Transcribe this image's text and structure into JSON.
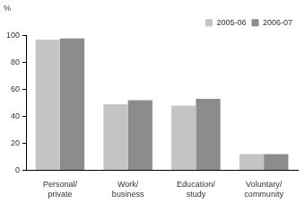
{
  "chart_data": {
    "type": "bar",
    "ylabel": "%",
    "categories": [
      "Personal/\nprivate",
      "Work/\nbusiness",
      "Education/\nstudy",
      "Voluntary/\ncommunity"
    ],
    "series": [
      {
        "name": "2005-06",
        "color": "#c4c4c4",
        "values": [
          97,
          49,
          48,
          12
        ]
      },
      {
        "name": "2006-07",
        "color": "#8c8c8c",
        "values": [
          98,
          52,
          53,
          12
        ]
      }
    ],
    "ylim": [
      0,
      100
    ],
    "yticks": [
      0,
      20,
      40,
      60,
      80,
      100
    ],
    "grid": true,
    "legend": "top-right"
  }
}
